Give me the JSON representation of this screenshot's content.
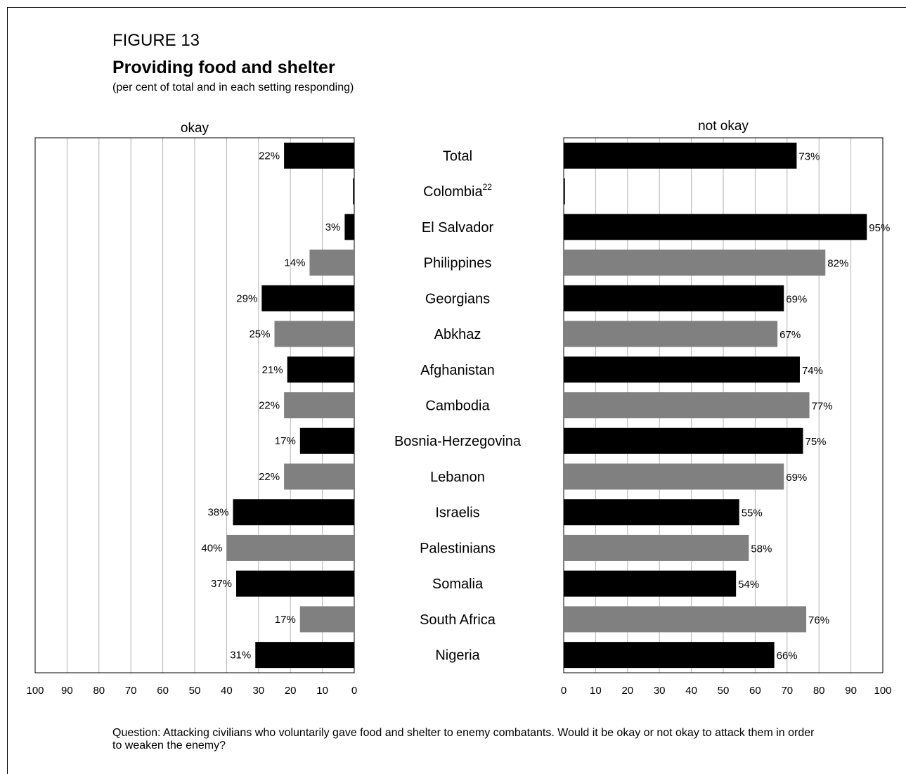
{
  "figure_label": "FIGURE 13",
  "title": "Providing food and shelter",
  "subtitle": "(per cent of total and in each setting responding)",
  "note": "Question: Attacking civilians who voluntarily gave food and shelter to enemy combatants. Would it be okay or not okay to attack them in order to weaken the enemy?",
  "colors": {
    "black": "#000000",
    "gray": "#808080",
    "grid": "#b3b3b3"
  },
  "chart_data": {
    "type": "bar",
    "orientation": "horizontal",
    "layout": "butterfly",
    "categories": [
      {
        "name": "Total",
        "superscript": "",
        "color": "black"
      },
      {
        "name": "Colombia",
        "superscript": "22",
        "color": "black"
      },
      {
        "name": "El Salvador",
        "superscript": "",
        "color": "black"
      },
      {
        "name": "Philippines",
        "superscript": "",
        "color": "gray"
      },
      {
        "name": "Georgians",
        "superscript": "",
        "color": "black"
      },
      {
        "name": "Abkhaz",
        "superscript": "",
        "color": "gray"
      },
      {
        "name": "Afghanistan",
        "superscript": "",
        "color": "black"
      },
      {
        "name": "Cambodia",
        "superscript": "",
        "color": "gray"
      },
      {
        "name": "Bosnia-Herzegovina",
        "superscript": "",
        "color": "black"
      },
      {
        "name": "Lebanon",
        "superscript": "",
        "color": "gray"
      },
      {
        "name": "Israelis",
        "superscript": "",
        "color": "black"
      },
      {
        "name": "Palestinians",
        "superscript": "",
        "color": "gray"
      },
      {
        "name": "Somalia",
        "superscript": "",
        "color": "black"
      },
      {
        "name": "South Africa",
        "superscript": "",
        "color": "gray"
      },
      {
        "name": "Nigeria",
        "superscript": "",
        "color": "black"
      }
    ],
    "series": [
      {
        "name": "okay",
        "values": [
          22,
          null,
          3,
          14,
          29,
          25,
          21,
          22,
          17,
          22,
          38,
          40,
          37,
          17,
          31
        ]
      },
      {
        "name": "not okay",
        "values": [
          73,
          null,
          95,
          82,
          69,
          67,
          74,
          77,
          75,
          69,
          55,
          58,
          54,
          76,
          66
        ]
      }
    ],
    "left_ticks": [
      "100",
      "90",
      "80",
      "70",
      "60",
      "50",
      "40",
      "30",
      "20",
      "10",
      "0"
    ],
    "right_ticks": [
      "0",
      "10",
      "20",
      "30",
      "40",
      "50",
      "60",
      "70",
      "80",
      "90",
      "100"
    ],
    "xlim": [
      0,
      100
    ],
    "grid": true,
    "value_suffix": "%"
  }
}
